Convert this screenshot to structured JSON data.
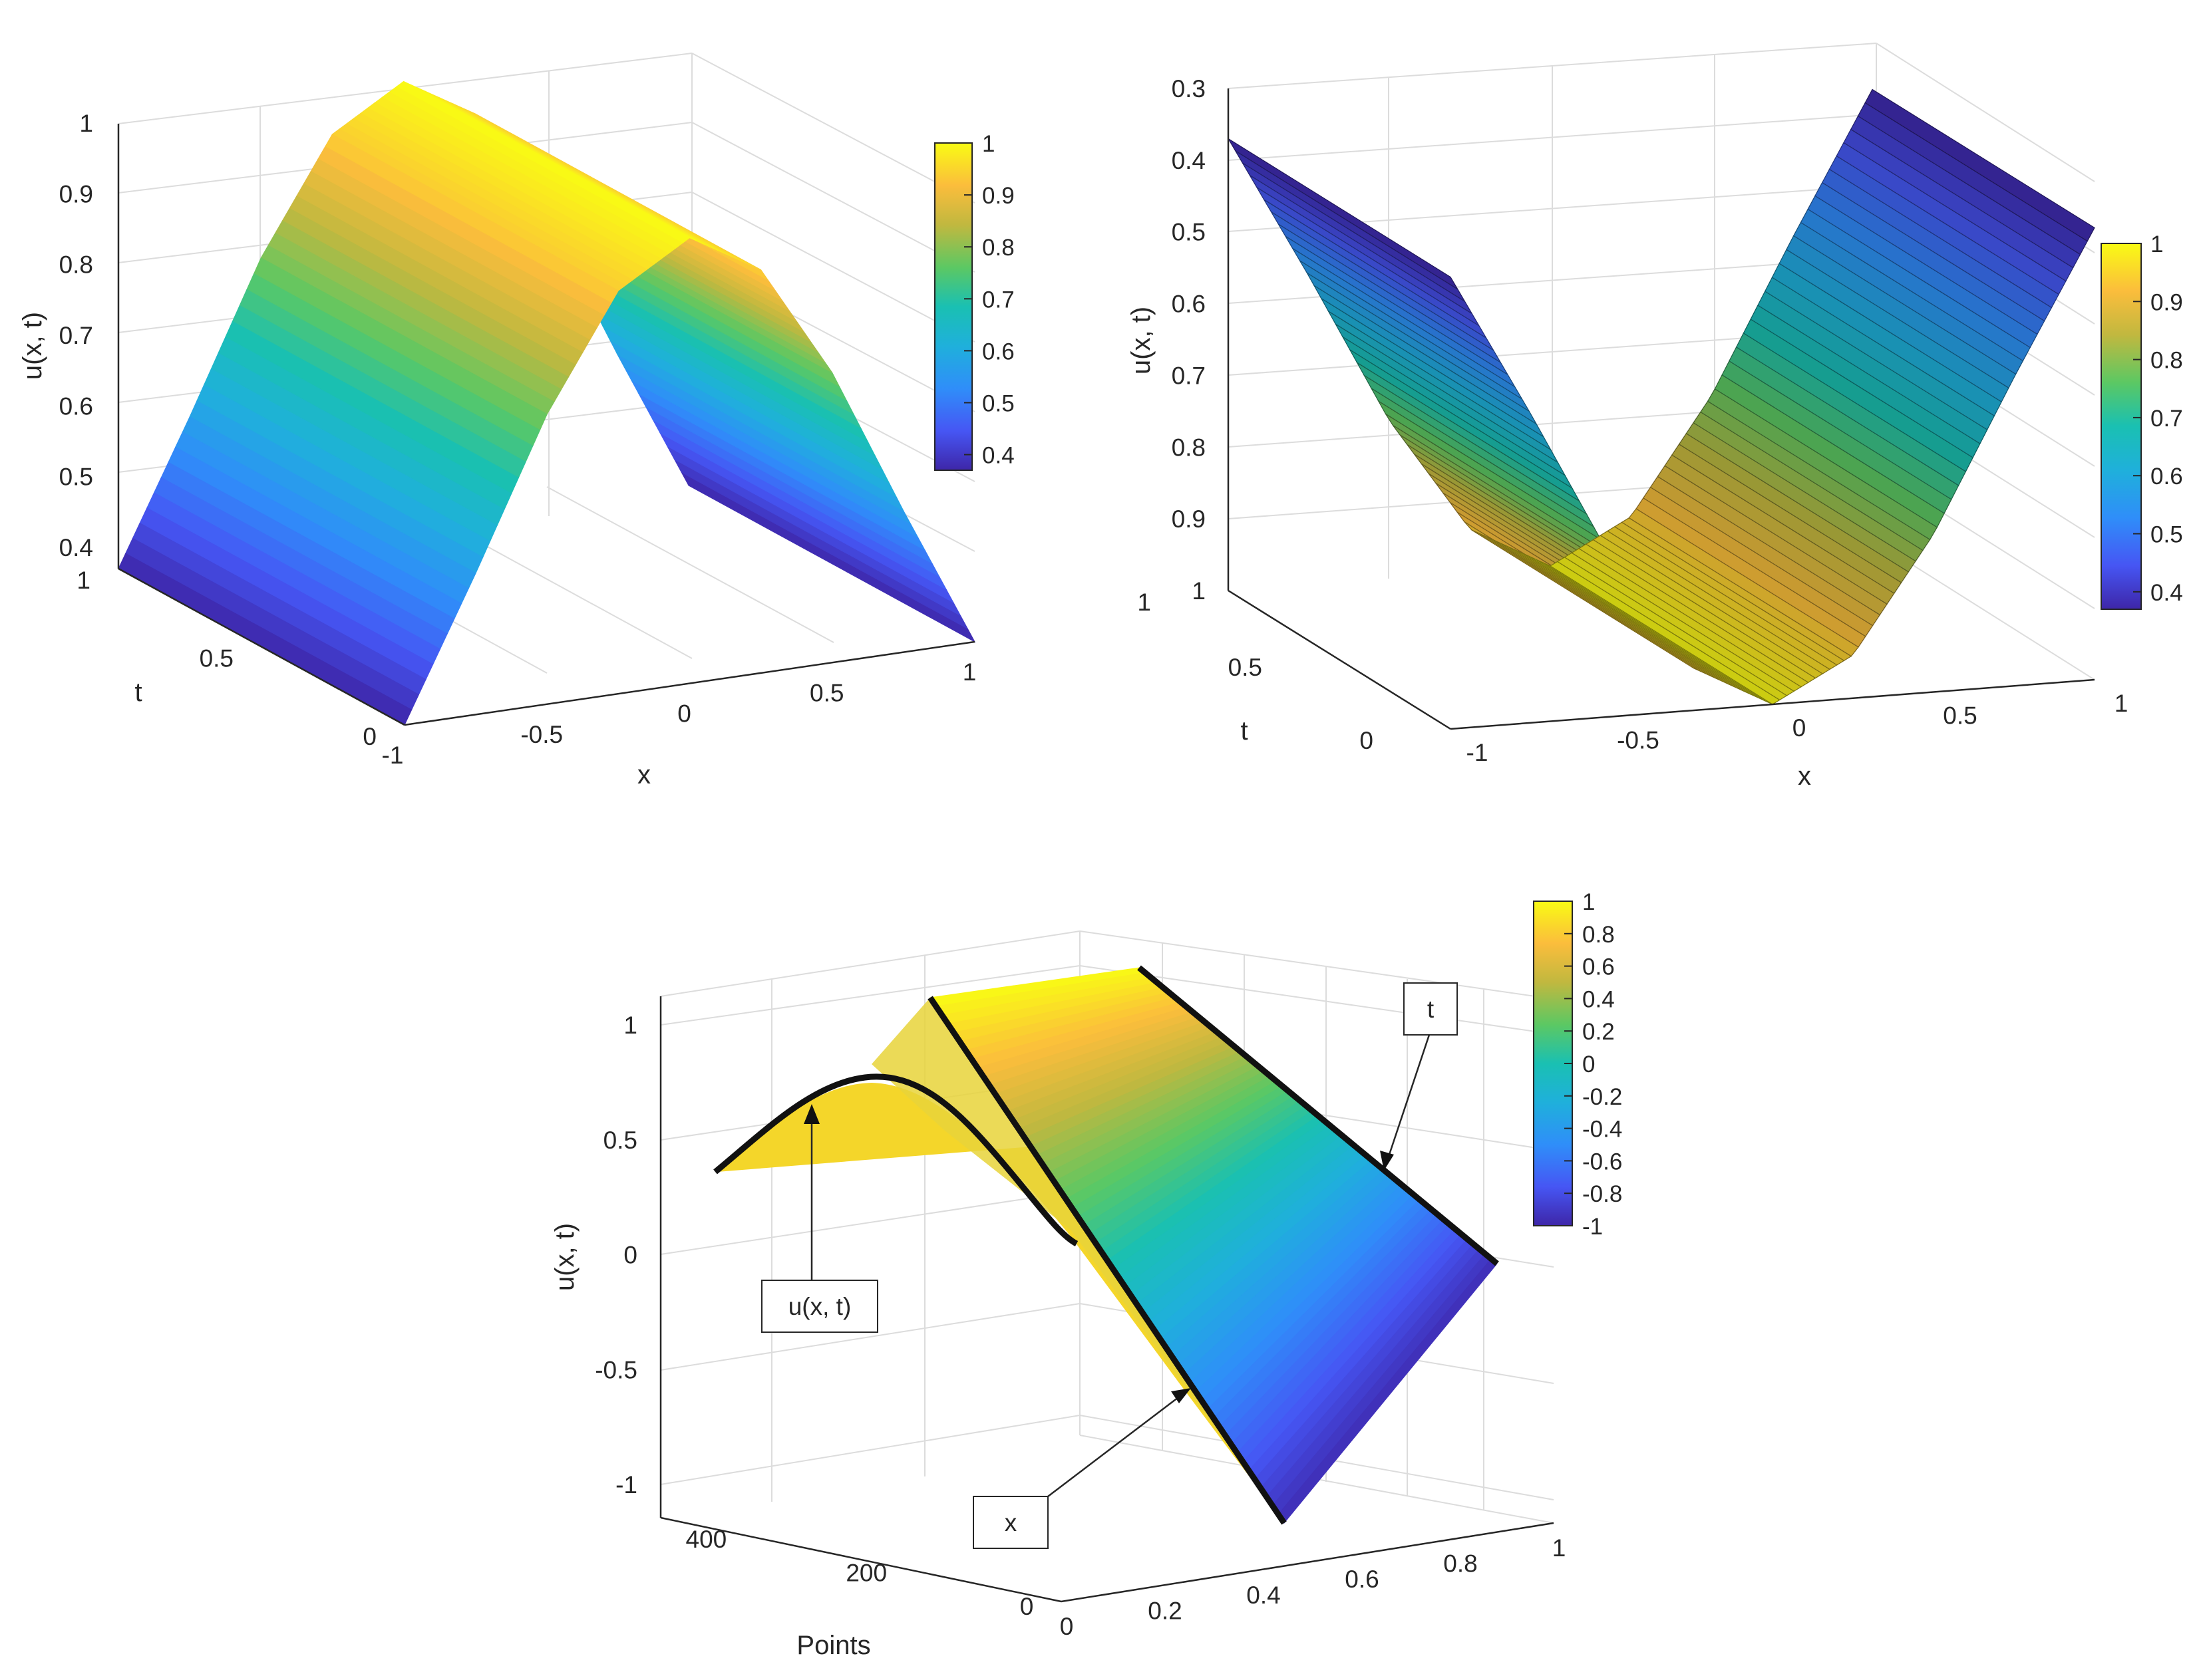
{
  "chart_data": [
    {
      "type": "surface",
      "view": "3d-from-front-left",
      "xlabel": "x",
      "ylabel": "t",
      "zlabel": "u(x, t)",
      "x_ticks": [
        "-1",
        "-0.5",
        "0",
        "0.5",
        "1"
      ],
      "t_ticks": [
        "0",
        "0.5",
        "1"
      ],
      "z_ticks": [
        "0.4",
        "0.5",
        "0.6",
        "0.7",
        "0.8",
        "0.9",
        "1"
      ],
      "xlim": [
        -1,
        1
      ],
      "tlim": [
        0,
        1
      ],
      "zlim": [
        0.37,
        1
      ],
      "x": [
        -1,
        -0.75,
        -0.5,
        -0.25,
        0,
        0.25,
        0.5,
        0.75,
        1
      ],
      "u_profile": [
        0.37,
        0.57,
        0.78,
        0.94,
        1.0,
        0.94,
        0.78,
        0.57,
        0.37
      ],
      "colorbar": {
        "ticks": [
          "0.4",
          "0.5",
          "0.6",
          "0.7",
          "0.8",
          "0.9",
          "1"
        ],
        "range": [
          0.37,
          1
        ]
      }
    },
    {
      "type": "surface",
      "view": "3d-from-below",
      "xlabel": "x",
      "ylabel": "t",
      "zlabel": "u(x, t)",
      "x_ticks": [
        "-1",
        "-0.5",
        "0",
        "0.5",
        "1"
      ],
      "t_ticks": [
        "0",
        "0.5",
        "1"
      ],
      "z_ticks": [
        "0.3",
        "0.4",
        "0.5",
        "0.6",
        "0.7",
        "0.8",
        "0.9",
        "1"
      ],
      "xlim": [
        -1,
        1
      ],
      "tlim": [
        0,
        1
      ],
      "zlim": [
        0.3,
        1
      ],
      "x": [
        -1,
        -0.75,
        -0.5,
        -0.25,
        0,
        0.25,
        0.5,
        0.75,
        1
      ],
      "u_profile": [
        0.37,
        0.57,
        0.78,
        0.94,
        1.0,
        0.94,
        0.78,
        0.57,
        0.37
      ],
      "colorbar": {
        "ticks": [
          "0.4",
          "0.5",
          "0.6",
          "0.7",
          "0.8",
          "0.9",
          "1"
        ],
        "range": [
          0.37,
          1
        ]
      }
    },
    {
      "type": "surface",
      "view": "3d-oblique",
      "xlabel": "Points",
      "ylabel": "",
      "zlabel": "u(x, t)",
      "points_ticks": [
        "0",
        "200",
        "400"
      ],
      "y_ticks": [
        "0",
        "0.2",
        "0.4",
        "0.6",
        "0.8",
        "1"
      ],
      "z_ticks": [
        "-1",
        "-0.5",
        "0",
        "0.5",
        "1"
      ],
      "zlim": [
        -1.2,
        1.2
      ],
      "colorbar": {
        "ticks": [
          "1",
          "0.8",
          "0.6",
          "0.4",
          "0.2",
          "0",
          "-0.2",
          "-0.4",
          "-0.6",
          "-0.8",
          "-1"
        ],
        "range": [
          -1,
          1
        ]
      },
      "annotations": [
        "u(x, t)",
        "x",
        "t"
      ]
    }
  ]
}
